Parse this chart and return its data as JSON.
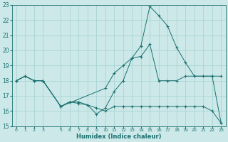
{
  "xlabel": "Humidex (Indice chaleur)",
  "bg_color": "#cce8e8",
  "grid_color": "#b0d8d8",
  "line_color": "#1a7070",
  "xlim": [
    -0.5,
    23.5
  ],
  "ylim": [
    15,
    23
  ],
  "yticks": [
    15,
    16,
    17,
    18,
    19,
    20,
    21,
    22,
    23
  ],
  "xticks": [
    0,
    1,
    2,
    3,
    5,
    6,
    7,
    8,
    9,
    10,
    11,
    12,
    13,
    14,
    15,
    16,
    17,
    18,
    19,
    20,
    21,
    22,
    23
  ],
  "line1_x": [
    0,
    1,
    2,
    3,
    5,
    6,
    7,
    8,
    9,
    10,
    11,
    12,
    13,
    14,
    15,
    16,
    17,
    18,
    19,
    20,
    21,
    22,
    23
  ],
  "line1_y": [
    18.0,
    18.3,
    18.0,
    18.0,
    16.3,
    16.6,
    16.6,
    16.4,
    16.2,
    16.0,
    16.3,
    16.3,
    16.3,
    16.3,
    16.3,
    16.3,
    16.3,
    16.3,
    16.3,
    16.3,
    16.3,
    16.0,
    15.2
  ],
  "line2_x": [
    0,
    1,
    2,
    3,
    5,
    6,
    7,
    8,
    9,
    10,
    11,
    12,
    13,
    14,
    15,
    16,
    17,
    18,
    19,
    20,
    22,
    23
  ],
  "line2_y": [
    18.0,
    18.3,
    18.0,
    18.0,
    16.3,
    16.6,
    16.5,
    16.4,
    15.8,
    16.2,
    17.3,
    18.0,
    19.5,
    19.6,
    20.4,
    18.0,
    18.0,
    18.0,
    18.3,
    18.3,
    18.3,
    15.2
  ],
  "line3_x": [
    0,
    1,
    2,
    3,
    5,
    10,
    11,
    12,
    13,
    14,
    15,
    16,
    17,
    18,
    19,
    20,
    21,
    22,
    23
  ],
  "line3_y": [
    18.0,
    18.3,
    18.0,
    18.0,
    16.3,
    17.5,
    18.5,
    19.0,
    19.5,
    20.3,
    22.9,
    22.3,
    21.6,
    20.2,
    19.2,
    18.3,
    18.3,
    18.3,
    18.3
  ]
}
